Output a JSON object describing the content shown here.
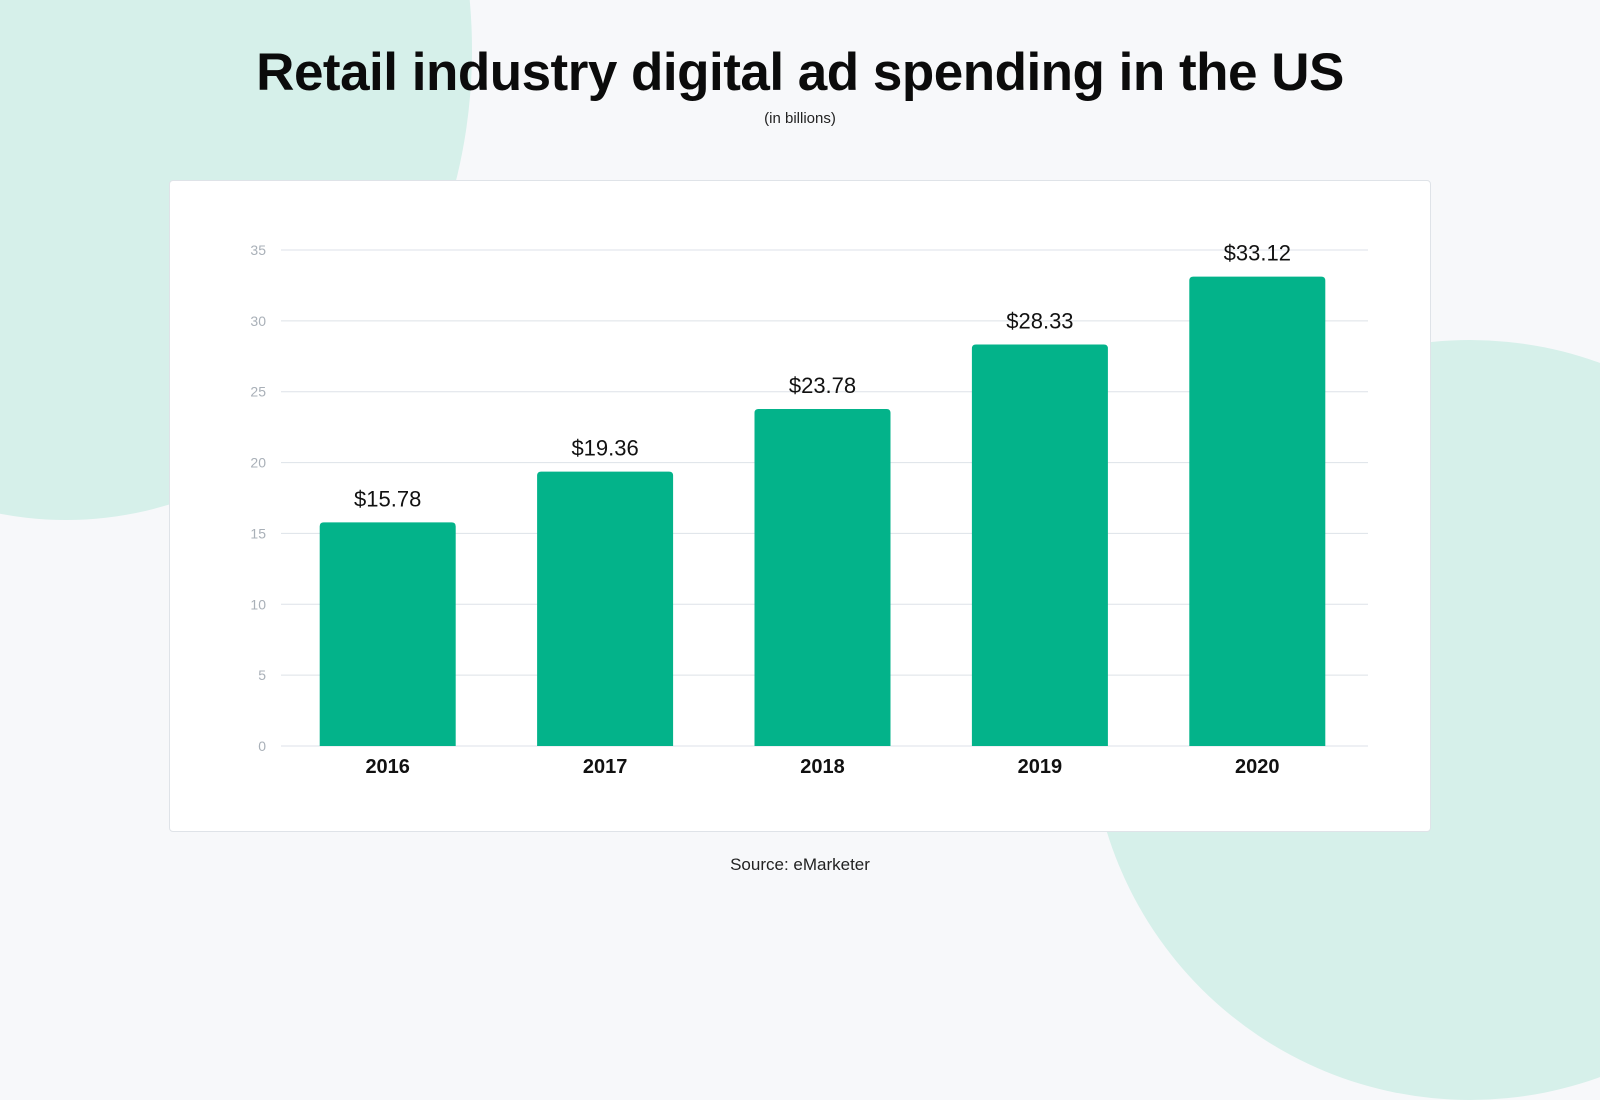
{
  "header": {
    "title": "Retail industry digital ad spending in the US",
    "subtitle": "(in billions)"
  },
  "footer": {
    "source": "Source: eMarketer"
  },
  "colors": {
    "bar": "#03b38a",
    "background": "#f7f8fa",
    "accent_shape": "#d6f0ea",
    "gridline": "#dde2e8"
  },
  "chart_data": {
    "type": "bar",
    "title": "Retail industry digital ad spending in the US",
    "subtitle": "(in billions)",
    "xlabel": "",
    "ylabel": "",
    "categories": [
      "2016",
      "2017",
      "2018",
      "2019",
      "2020"
    ],
    "values": [
      15.78,
      19.36,
      23.78,
      28.33,
      33.12
    ],
    "value_labels": [
      "$15.78",
      "$19.36",
      "$23.78",
      "$28.33",
      "$33.12"
    ],
    "ylim": [
      0,
      35
    ],
    "yticks": [
      0,
      5,
      10,
      15,
      20,
      25,
      30,
      35
    ],
    "grid": true,
    "legend": "none",
    "source": "Source: eMarketer"
  }
}
